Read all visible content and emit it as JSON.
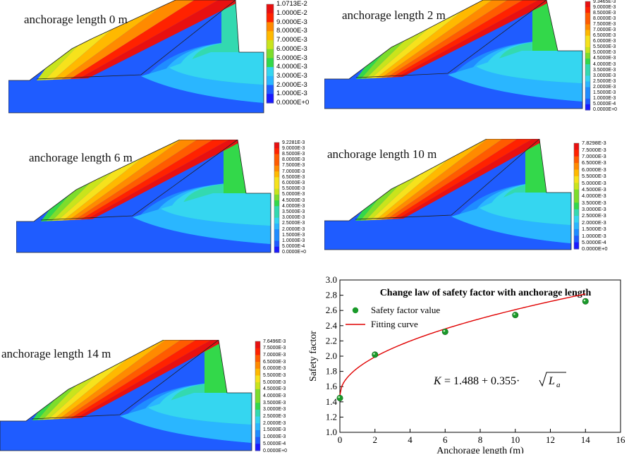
{
  "colors": {
    "slope_scale": [
      "#1a1aff",
      "#1f5cff",
      "#1f8cff",
      "#2ab6ff",
      "#35d6f0",
      "#33d9b0",
      "#33d84a",
      "#7ddd2b",
      "#c9e41c",
      "#f6e21c",
      "#ffb900",
      "#ff8a00",
      "#ff5b00",
      "#ff2200",
      "#e81010"
    ],
    "point": "#1a9a2a",
    "curve": "#e00000"
  },
  "panels": [
    {
      "title": "anchorage length 0 m",
      "legend": [
        "1.0713E-2",
        "1.0000E-2",
        "9.0000E-3",
        "8.0000E-3",
        "7.0000E-3",
        "6.0000E-3",
        "5.0000E-3",
        "4.0000E-3",
        "3.0000E-3",
        "2.0000E-3",
        "1.0000E-3",
        "0.0000E+0"
      ]
    },
    {
      "title": "anchorage length 2 m",
      "legend": [
        "9.3465E-3",
        "9.0000E-3",
        "8.5000E-3",
        "8.0000E-3",
        "7.5000E-3",
        "7.0000E-3",
        "6.5000E-3",
        "6.0000E-3",
        "5.5000E-3",
        "5.0000E-3",
        "4.5000E-3",
        "4.0000E-3",
        "3.5000E-3",
        "3.0000E-3",
        "2.5000E-3",
        "2.0000E-3",
        "1.5000E-3",
        "1.0000E-3",
        "5.0000E-4",
        "0.0000E+0"
      ]
    },
    {
      "title": "anchorage length 6 m",
      "legend": [
        "9.2281E-3",
        "9.0000E-3",
        "8.5000E-3",
        "8.0000E-3",
        "7.5000E-3",
        "7.0000E-3",
        "6.5000E-3",
        "6.0000E-3",
        "5.5000E-3",
        "5.0000E-3",
        "4.5000E-3",
        "4.0000E-3",
        "3.5000E-3",
        "3.0000E-3",
        "2.5000E-3",
        "2.0000E-3",
        "1.5000E-3",
        "1.0000E-3",
        "5.0000E-4",
        "0.0000E+0"
      ]
    },
    {
      "title": "anchorage length 10 m",
      "legend": [
        "7.8298E-3",
        "7.5000E-3",
        "7.0000E-3",
        "6.5000E-3",
        "6.0000E-3",
        "5.5000E-3",
        "5.0000E-3",
        "4.5000E-3",
        "4.0000E-3",
        "3.5000E-3",
        "3.0000E-3",
        "2.5000E-3",
        "2.0000E-3",
        "1.5000E-3",
        "1.0000E-3",
        "5.0000E-4",
        "0.0000E+0"
      ]
    },
    {
      "title": "anchorage length 14 m",
      "legend": [
        "7.6496E-3",
        "7.5000E-3",
        "7.0000E-3",
        "6.5000E-3",
        "6.0000E-3",
        "5.5000E-3",
        "5.0000E-3",
        "4.5000E-3",
        "4.0000E-3",
        "3.5000E-3",
        "3.0000E-3",
        "2.5000E-3",
        "2.0000E-3",
        "1.5000E-3",
        "1.0000E-3",
        "5.0000E-4",
        "0.0000E+0"
      ]
    }
  ],
  "chart_data": {
    "type": "scatter",
    "title": "Change law of safety factor with anchorage length",
    "xlabel": "Anchorage length  (m)",
    "ylabel": "Safety factor",
    "xlim": [
      0,
      16
    ],
    "ylim": [
      1.0,
      3.0
    ],
    "xticks": [
      0,
      2,
      4,
      6,
      8,
      10,
      12,
      14,
      16
    ],
    "yticks": [
      1.0,
      1.2,
      1.4,
      1.6,
      1.8,
      2.0,
      2.2,
      2.4,
      2.6,
      2.8,
      3.0
    ],
    "series": [
      {
        "name": "Safety factor value",
        "kind": "points",
        "x": [
          0,
          2,
          6,
          10,
          14
        ],
        "y": [
          1.45,
          2.02,
          2.32,
          2.54,
          2.72
        ]
      },
      {
        "name": "Fitting curve",
        "kind": "line",
        "formula": "K = 1.488 + 0.355 * sqrt(La)",
        "a": 1.488,
        "b": 0.355
      }
    ],
    "equation": {
      "lhs": "K",
      "rhs_const": "= 1.488 + 0.355",
      "sqrt_var": "L",
      "sqrt_sub": "a"
    }
  }
}
